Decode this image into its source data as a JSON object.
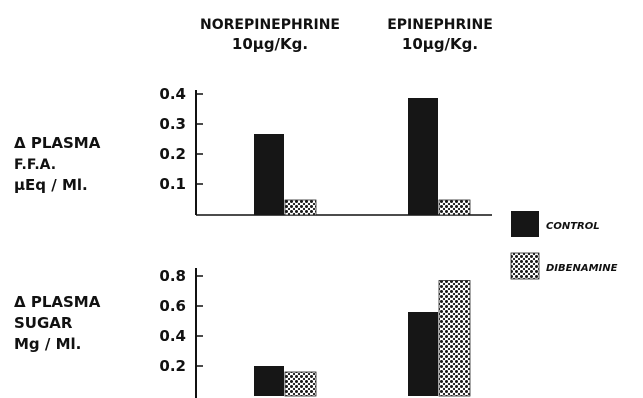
{
  "chart_data": [
    {
      "type": "bar",
      "categories": [
        "NOREPINEPHRINE 10µg/Kg.",
        "EPINEPHRINE 10µg/Kg."
      ],
      "category_lines": [
        [
          "NOREPINEPHRINE",
          "10µg/Kg."
        ],
        [
          "EPINEPHRINE",
          "10µg/Kg."
        ]
      ],
      "ylabel_lines": [
        "Δ PLASMA",
        "F.F.A.",
        "µEq / Ml."
      ],
      "yticks": [
        "0.1",
        "0.2",
        "0.3",
        "0.4"
      ],
      "ylim": [
        0,
        0.4
      ],
      "series": [
        {
          "name": "CONTROL",
          "values": [
            0.27,
            0.39
          ]
        },
        {
          "name": "DIBENAMINE",
          "values": [
            0.05,
            0.05
          ]
        }
      ]
    },
    {
      "type": "bar",
      "categories": [
        "NOREPINEPHRINE 10µg/Kg.",
        "EPINEPHRINE 10µg/Kg."
      ],
      "ylabel_lines": [
        "Δ PLASMA",
        "SUGAR",
        "Mg / Ml."
      ],
      "yticks": [
        "0.2",
        "0.4",
        "0.6",
        "0.8"
      ],
      "ylim": [
        0,
        0.8
      ],
      "series": [
        {
          "name": "CONTROL",
          "values": [
            0.2,
            0.56
          ]
        },
        {
          "name": "DIBENAMINE",
          "values": [
            0.16,
            0.77
          ]
        }
      ]
    }
  ],
  "legend": [
    {
      "name": "CONTROL",
      "pattern": "solid",
      "color": "#161616"
    },
    {
      "name": "DIBENAMINE",
      "pattern": "dotted",
      "color": "#1a1a1a"
    }
  ]
}
